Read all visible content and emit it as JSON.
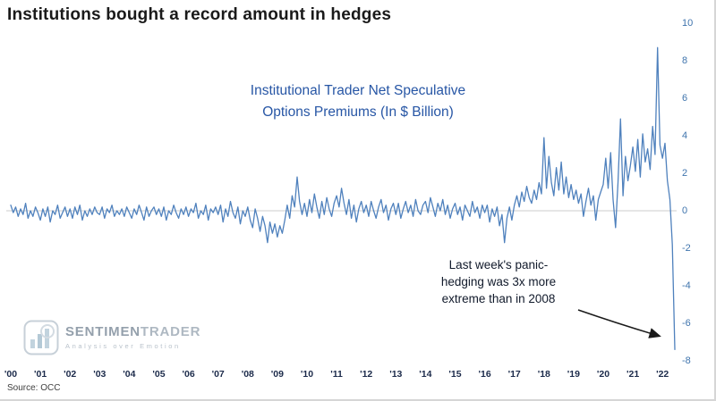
{
  "title": "Institutions bought a record amount in hedges",
  "source": "Source: OCC",
  "chart_data": {
    "type": "line",
    "title": "Institutional Trader Net Speculative Options Premiums (In $ Billion)",
    "series_label_line1": "Institutional Trader Net Speculative",
    "series_label_line2": "Options Premiums (In $ Billion)",
    "line_color": "#4f81bd",
    "zero_line_color": "#cccccc",
    "grid": "zero-line-only",
    "legend": "none",
    "ylim": [
      -8,
      10
    ],
    "y_ticks": [
      10,
      8,
      6,
      4,
      2,
      0,
      -2,
      -4,
      -6,
      -8
    ],
    "x_tick_labels": [
      "'00",
      "'01",
      "'02",
      "'03",
      "'04",
      "'05",
      "'06",
      "'07",
      "'08",
      "'09",
      "'10",
      "'11",
      "'12",
      "'13",
      "'14",
      "'15",
      "'16",
      "'17",
      "'18",
      "'19",
      "'20",
      "'21",
      "'22"
    ],
    "start_year": 2000,
    "points_per_year": 12,
    "values": [
      0.3,
      -0.1,
      0.2,
      -0.3,
      0.1,
      -0.2,
      0.4,
      -0.4,
      0.0,
      -0.3,
      0.2,
      -0.1,
      -0.5,
      0.1,
      -0.3,
      0.2,
      -0.6,
      0.0,
      -0.2,
      0.3,
      -0.4,
      -0.1,
      0.2,
      -0.3,
      0.1,
      -0.4,
      0.2,
      -0.2,
      0.3,
      -0.5,
      0.0,
      -0.3,
      0.1,
      -0.2,
      0.2,
      -0.1,
      -0.2,
      0.2,
      -0.4,
      0.1,
      -0.1,
      0.3,
      -0.3,
      0.0,
      -0.2,
      0.1,
      -0.3,
      0.2,
      -0.1,
      -0.4,
      0.1,
      -0.2,
      0.3,
      -0.1,
      -0.5,
      0.2,
      -0.3,
      0.0,
      0.2,
      -0.2,
      0.1,
      -0.3,
      0.2,
      -0.5,
      0.0,
      -0.2,
      0.3,
      -0.1,
      -0.4,
      0.1,
      -0.2,
      0.2,
      -0.3,
      0.1,
      -0.1,
      0.4,
      -0.4,
      0.0,
      -0.2,
      0.3,
      -0.5,
      0.1,
      -0.1,
      0.2,
      -0.2,
      0.3,
      -0.6,
      0.1,
      -0.3,
      0.5,
      -0.1,
      -0.4,
      0.2,
      -0.7,
      0.0,
      -0.3,
      0.2,
      -0.5,
      -0.9,
      0.1,
      -0.4,
      -1.1,
      -0.3,
      -0.8,
      -1.7,
      -0.6,
      -1.2,
      -0.7,
      -1.4,
      -0.8,
      -1.2,
      -0.5,
      0.3,
      -0.4,
      0.8,
      0.2,
      1.8,
      0.5,
      -0.2,
      0.4,
      -0.3,
      0.6,
      -0.1,
      0.9,
      0.2,
      -0.4,
      0.5,
      -0.2,
      0.7,
      0.1,
      -0.3,
      0.4,
      0.8,
      0.2,
      1.2,
      0.4,
      -0.2,
      0.6,
      -0.4,
      0.3,
      -0.6,
      0.1,
      0.5,
      -0.1,
      0.3,
      -0.3,
      0.5,
      0.0,
      -0.4,
      0.2,
      0.6,
      -0.1,
      0.3,
      -0.5,
      0.1,
      0.4,
      -0.2,
      0.4,
      -0.4,
      0.1,
      0.5,
      -0.1,
      0.3,
      -0.3,
      0.6,
      0.0,
      -0.2,
      0.3,
      0.5,
      -0.1,
      0.7,
      0.2,
      -0.3,
      0.4,
      0.0,
      0.6,
      -0.2,
      0.3,
      -0.4,
      0.1,
      0.4,
      -0.2,
      0.2,
      -0.5,
      0.3,
      0.0,
      -0.3,
      0.5,
      -0.1,
      0.2,
      -0.4,
      0.3,
      -0.1,
      0.3,
      -0.6,
      0.1,
      -0.3,
      0.2,
      -0.8,
      -0.2,
      -1.7,
      -0.4,
      0.2,
      -0.5,
      0.3,
      0.8,
      0.2,
      1.0,
      0.5,
      1.3,
      0.7,
      0.4,
      1.1,
      0.6,
      1.5,
      0.9,
      3.9,
      1.2,
      2.9,
      1.5,
      0.8,
      2.3,
      1.1,
      2.6,
      0.9,
      1.8,
      0.7,
      1.4,
      0.6,
      1.1,
      0.4,
      0.9,
      -0.3,
      0.5,
      1.2,
      0.3,
      0.8,
      -0.5,
      0.6,
      1.0,
      1.4,
      2.8,
      1.2,
      3.1,
      0.6,
      -0.9,
      1.5,
      4.9,
      0.8,
      2.9,
      1.6,
      2.4,
      3.4,
      2.1,
      3.8,
      1.8,
      4.1,
      2.6,
      3.3,
      2.2,
      4.5,
      3.0,
      8.7,
      3.5,
      2.8,
      3.6,
      1.6,
      0.6,
      -1.8,
      -7.4
    ],
    "annotation": {
      "line1": "Last week's panic-",
      "line2": "hedging was 3x more",
      "line3": "extreme than in 2008",
      "arrow": "points to final downward spike"
    }
  },
  "watermark": {
    "brand_part1": "SENTIMEN",
    "brand_part2": "TRADER",
    "tagline": "Analysis over Emotion",
    "icon": "bar-chart-logo-icon"
  }
}
